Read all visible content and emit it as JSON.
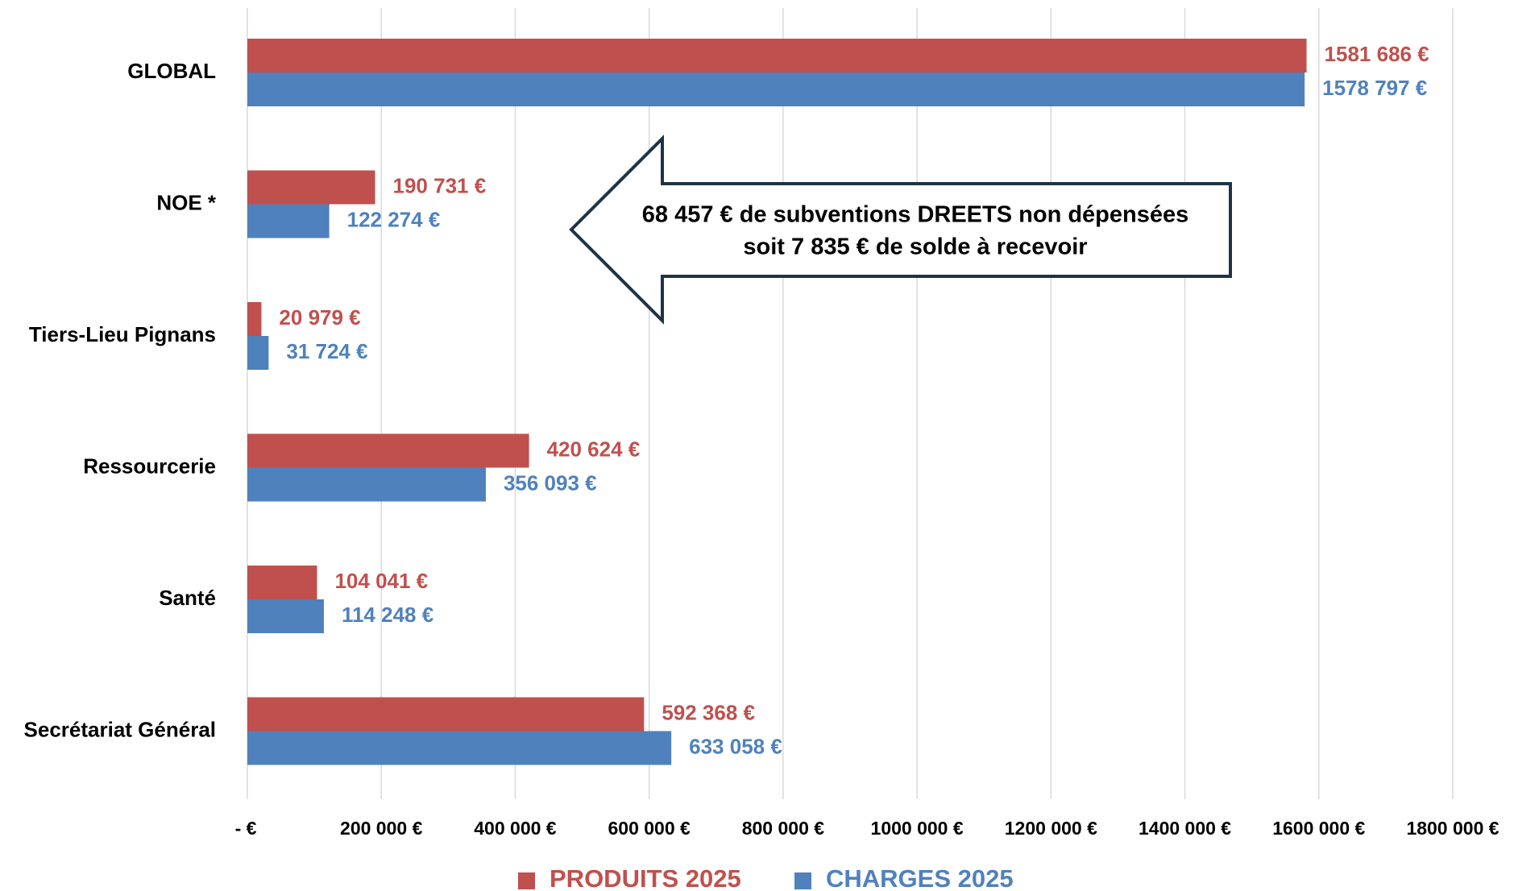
{
  "chart_data": {
    "type": "bar",
    "orientation": "horizontal",
    "categories": [
      "GLOBAL",
      "NOE *",
      "Tiers-Lieu Pignans",
      "Ressourcerie",
      "Santé",
      "Secrétariat Général"
    ],
    "series": [
      {
        "name": "PRODUITS 2025",
        "color": "#c0504d",
        "values": [
          1581686,
          190731,
          20979,
          420624,
          104041,
          592368
        ],
        "value_labels": [
          "1581 686 €",
          "190 731 €",
          "20 979 €",
          "420 624 €",
          "104 041 €",
          "592 368 €"
        ]
      },
      {
        "name": "CHARGES 2025",
        "color": "#4f81bd",
        "values": [
          1578797,
          122274,
          31724,
          356093,
          114248,
          633058
        ],
        "value_labels": [
          "1578 797 €",
          "122 274 €",
          "31 724 €",
          "356 093 €",
          "114 248 €",
          "633 058 €"
        ]
      }
    ],
    "xlim": [
      0,
      1800000
    ],
    "xticks": [
      {
        "value": 0,
        "label": "-  €"
      },
      {
        "value": 200000,
        "label": "200 000 €"
      },
      {
        "value": 400000,
        "label": "400 000 €"
      },
      {
        "value": 600000,
        "label": "600 000 €"
      },
      {
        "value": 800000,
        "label": "800 000 €"
      },
      {
        "value": 1000000,
        "label": "1000 000 €"
      },
      {
        "value": 1200000,
        "label": "1200 000 €"
      },
      {
        "value": 1400000,
        "label": "1400 000 €"
      },
      {
        "value": 1600000,
        "label": "1600 000 €"
      },
      {
        "value": 1800000,
        "label": "1800 000 €"
      }
    ],
    "grid": true,
    "legend": "bottom",
    "annotations": [
      "68 457 € de subventions DREETS non dépensées",
      "soit 7 835 € de solde à recevoir"
    ]
  }
}
